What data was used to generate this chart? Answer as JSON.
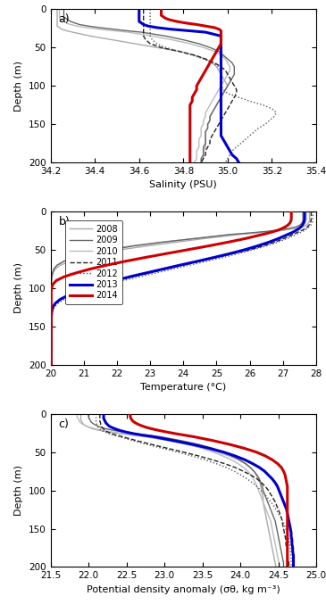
{
  "years": [
    "2008",
    "2009",
    "2010",
    "2011",
    "2012",
    "2013",
    "2014"
  ],
  "styles": {
    "2008": {
      "color": "#aaaaaa",
      "lw": 1.0,
      "ls": "-",
      "zorder": 1
    },
    "2009": {
      "color": "#666666",
      "lw": 1.0,
      "ls": "-",
      "zorder": 2
    },
    "2010": {
      "color": "#bbbbbb",
      "lw": 1.0,
      "ls": "-",
      "zorder": 1
    },
    "2011": {
      "color": "#222222",
      "lw": 1.0,
      "ls": "--",
      "zorder": 2
    },
    "2012": {
      "color": "#555555",
      "lw": 1.0,
      "ls": ":",
      "zorder": 2
    },
    "2013": {
      "color": "#0000cc",
      "lw": 2.2,
      "ls": "-",
      "zorder": 5
    },
    "2014": {
      "color": "#cc0000",
      "lw": 2.2,
      "ls": "-",
      "zorder": 6
    }
  },
  "depth": [
    0,
    2,
    4,
    6,
    8,
    10,
    12,
    14,
    16,
    18,
    20,
    22,
    24,
    26,
    28,
    30,
    35,
    40,
    45,
    50,
    55,
    60,
    65,
    70,
    75,
    80,
    85,
    90,
    95,
    100,
    105,
    110,
    115,
    120,
    125,
    130,
    135,
    140,
    145,
    150,
    155,
    160,
    165,
    170,
    175,
    180,
    185,
    190,
    195,
    200
  ],
  "salinity": {
    "2008": [
      34.23,
      34.23,
      34.23,
      34.23,
      34.23,
      34.23,
      34.23,
      34.23,
      34.23,
      34.23,
      34.23,
      34.23,
      34.24,
      34.25,
      34.27,
      34.3,
      34.38,
      34.48,
      34.58,
      34.68,
      34.78,
      34.85,
      34.9,
      34.93,
      34.95,
      34.96,
      34.97,
      34.98,
      34.99,
      35.0,
      34.99,
      34.98,
      34.97,
      34.96,
      34.95,
      34.94,
      34.93,
      34.92,
      34.92,
      34.91,
      34.91,
      34.9,
      34.9,
      34.9,
      34.9,
      34.9,
      34.89,
      34.89,
      34.89,
      34.88
    ],
    "2009": [
      34.26,
      34.26,
      34.26,
      34.26,
      34.26,
      34.26,
      34.27,
      34.28,
      34.29,
      34.31,
      34.33,
      34.37,
      34.42,
      34.48,
      34.54,
      34.61,
      34.72,
      34.8,
      34.87,
      34.92,
      34.96,
      34.98,
      35.0,
      35.02,
      35.03,
      35.03,
      35.03,
      35.02,
      35.01,
      35.0,
      34.99,
      34.98,
      34.97,
      34.96,
      34.95,
      34.94,
      34.93,
      34.92,
      34.92,
      34.91,
      34.91,
      34.9,
      34.9,
      34.9,
      34.9,
      34.89,
      34.89,
      34.89,
      34.88,
      34.88
    ],
    "2010": [
      34.24,
      34.24,
      34.24,
      34.24,
      34.24,
      34.24,
      34.24,
      34.25,
      34.26,
      34.27,
      34.29,
      34.32,
      34.36,
      34.42,
      34.48,
      34.55,
      34.66,
      34.75,
      34.83,
      34.89,
      34.94,
      34.97,
      34.99,
      35.0,
      35.01,
      35.01,
      35.0,
      34.99,
      34.98,
      34.97,
      34.96,
      34.95,
      34.94,
      34.93,
      34.92,
      34.91,
      34.9,
      34.9,
      34.89,
      34.89,
      34.88,
      34.88,
      34.88,
      34.87,
      34.87,
      34.87,
      34.86,
      34.86,
      34.86,
      34.85
    ],
    "2011": [
      34.62,
      34.62,
      34.62,
      34.62,
      34.62,
      34.62,
      34.62,
      34.62,
      34.62,
      34.62,
      34.62,
      34.62,
      34.62,
      34.62,
      34.62,
      34.62,
      34.62,
      34.63,
      34.65,
      34.7,
      34.78,
      34.85,
      34.9,
      34.94,
      34.97,
      34.99,
      35.0,
      35.01,
      35.02,
      35.03,
      35.04,
      35.04,
      35.03,
      35.02,
      35.01,
      35.0,
      34.99,
      34.98,
      34.97,
      34.96,
      34.95,
      34.94,
      34.93,
      34.92,
      34.92,
      34.91,
      34.9,
      34.9,
      34.89,
      34.88
    ],
    "2012": [
      34.65,
      34.65,
      34.65,
      34.65,
      34.65,
      34.65,
      34.65,
      34.65,
      34.65,
      34.65,
      34.65,
      34.65,
      34.65,
      34.65,
      34.65,
      34.65,
      34.65,
      34.66,
      34.68,
      34.72,
      34.78,
      34.84,
      34.89,
      34.93,
      34.96,
      34.97,
      34.97,
      34.97,
      34.97,
      34.97,
      34.98,
      35.0,
      35.05,
      35.1,
      35.16,
      35.2,
      35.22,
      35.21,
      35.19,
      35.17,
      35.14,
      35.12,
      35.1,
      35.08,
      35.06,
      35.04,
      35.02,
      35.01,
      35.0,
      34.99
    ],
    "2013": [
      34.6,
      34.6,
      34.6,
      34.6,
      34.6,
      34.6,
      34.6,
      34.6,
      34.6,
      34.61,
      34.62,
      34.64,
      34.68,
      34.74,
      34.82,
      34.9,
      34.97,
      34.97,
      34.97,
      34.97,
      34.97,
      34.97,
      34.97,
      34.97,
      34.97,
      34.97,
      34.97,
      34.97,
      34.97,
      34.97,
      34.97,
      34.97,
      34.97,
      34.97,
      34.97,
      34.97,
      34.97,
      34.97,
      34.97,
      34.97,
      34.97,
      34.97,
      34.97,
      34.98,
      34.99,
      35.0,
      35.01,
      35.02,
      35.04,
      35.05
    ],
    "2014": [
      34.7,
      34.7,
      34.7,
      34.7,
      34.7,
      34.71,
      34.72,
      34.74,
      34.77,
      34.81,
      34.86,
      34.9,
      34.94,
      34.96,
      34.97,
      34.97,
      34.97,
      34.97,
      34.97,
      34.96,
      34.95,
      34.94,
      34.93,
      34.92,
      34.91,
      34.9,
      34.89,
      34.88,
      34.87,
      34.86,
      34.86,
      34.85,
      34.84,
      34.84,
      34.83,
      34.83,
      34.83,
      34.83,
      34.83,
      34.83,
      34.83,
      34.83,
      34.83,
      34.83,
      34.83,
      34.83,
      34.83,
      34.83,
      34.83,
      34.83
    ]
  },
  "temperature": {
    "2008": [
      27.8,
      27.8,
      27.8,
      27.8,
      27.8,
      27.8,
      27.8,
      27.78,
      27.75,
      27.7,
      27.6,
      27.4,
      27.1,
      26.7,
      26.2,
      25.7,
      24.7,
      23.8,
      22.9,
      22.1,
      21.5,
      21.0,
      20.6,
      20.3,
      20.15,
      20.08,
      20.05,
      20.03,
      20.02,
      20.02,
      20.02,
      20.02,
      20.02,
      20.02,
      20.02,
      20.02,
      20.02,
      20.02,
      20.02,
      20.02,
      20.02,
      20.02,
      20.02,
      20.02,
      20.02,
      20.02,
      20.02,
      20.02,
      20.02,
      20.02
    ],
    "2009": [
      27.6,
      27.6,
      27.6,
      27.6,
      27.6,
      27.6,
      27.6,
      27.58,
      27.55,
      27.5,
      27.4,
      27.2,
      26.9,
      26.5,
      26.0,
      25.4,
      24.4,
      23.4,
      22.5,
      21.8,
      21.2,
      20.8,
      20.4,
      20.2,
      20.1,
      20.06,
      20.04,
      20.03,
      20.02,
      20.02,
      20.02,
      20.02,
      20.02,
      20.02,
      20.02,
      20.02,
      20.02,
      20.02,
      20.02,
      20.02,
      20.02,
      20.02,
      20.02,
      20.02,
      20.02,
      20.02,
      20.02,
      20.02,
      20.02,
      20.02
    ],
    "2010": [
      27.7,
      27.7,
      27.7,
      27.7,
      27.7,
      27.7,
      27.7,
      27.68,
      27.65,
      27.6,
      27.5,
      27.3,
      27.0,
      26.6,
      26.1,
      25.5,
      24.4,
      23.3,
      22.4,
      21.7,
      21.1,
      20.7,
      20.4,
      20.2,
      20.1,
      20.06,
      20.04,
      20.03,
      20.02,
      20.02,
      20.02,
      20.02,
      20.02,
      20.02,
      20.02,
      20.02,
      20.02,
      20.02,
      20.02,
      20.02,
      20.02,
      20.02,
      20.02,
      20.02,
      20.02,
      20.02,
      20.02,
      20.02,
      20.02,
      20.02
    ],
    "2011": [
      27.85,
      27.85,
      27.85,
      27.85,
      27.85,
      27.85,
      27.84,
      27.83,
      27.81,
      27.78,
      27.74,
      27.68,
      27.6,
      27.5,
      27.4,
      27.3,
      27.05,
      26.75,
      26.4,
      26.0,
      25.5,
      25.0,
      24.5,
      24.0,
      23.5,
      23.0,
      22.5,
      22.0,
      21.5,
      21.1,
      20.8,
      20.5,
      20.3,
      20.15,
      20.08,
      20.05,
      20.03,
      20.02,
      20.02,
      20.02,
      20.02,
      20.02,
      20.02,
      20.02,
      20.02,
      20.02,
      20.02,
      20.02,
      20.02,
      20.02
    ],
    "2012": [
      27.9,
      27.9,
      27.9,
      27.9,
      27.9,
      27.9,
      27.89,
      27.88,
      27.86,
      27.83,
      27.79,
      27.74,
      27.67,
      27.59,
      27.5,
      27.4,
      27.15,
      26.85,
      26.5,
      26.1,
      25.65,
      25.2,
      24.7,
      24.2,
      23.7,
      23.2,
      22.7,
      22.2,
      21.7,
      21.3,
      20.95,
      20.65,
      20.4,
      20.22,
      20.1,
      20.06,
      20.04,
      20.03,
      20.02,
      20.02,
      20.02,
      20.02,
      20.02,
      20.02,
      20.02,
      20.02,
      20.02,
      20.02,
      20.02,
      20.02
    ],
    "2013": [
      27.65,
      27.65,
      27.65,
      27.65,
      27.65,
      27.65,
      27.64,
      27.63,
      27.61,
      27.58,
      27.54,
      27.49,
      27.42,
      27.34,
      27.25,
      27.14,
      26.88,
      26.58,
      26.23,
      25.84,
      25.4,
      24.92,
      24.42,
      23.9,
      23.4,
      22.9,
      22.4,
      21.95,
      21.52,
      21.12,
      20.78,
      20.5,
      20.28,
      20.14,
      20.07,
      20.04,
      20.03,
      20.02,
      20.02,
      20.02,
      20.02,
      20.02,
      20.02,
      20.02,
      20.02,
      20.02,
      20.02,
      20.02,
      20.02,
      20.02
    ],
    "2014": [
      27.25,
      27.25,
      27.25,
      27.25,
      27.25,
      27.25,
      27.24,
      27.22,
      27.19,
      27.14,
      27.07,
      26.98,
      26.87,
      26.73,
      26.57,
      26.38,
      25.9,
      25.35,
      24.75,
      24.12,
      23.48,
      22.85,
      22.25,
      21.7,
      21.2,
      20.78,
      20.42,
      20.18,
      20.07,
      20.03,
      20.02,
      20.02,
      20.02,
      20.02,
      20.02,
      20.02,
      20.02,
      20.02,
      20.02,
      20.02,
      20.02,
      20.02,
      20.02,
      20.02,
      20.02,
      20.02,
      20.02,
      20.02,
      20.02,
      20.02
    ]
  },
  "density": {
    "2008": [
      21.9,
      21.9,
      21.9,
      21.9,
      21.9,
      21.91,
      21.92,
      21.94,
      21.97,
      22.01,
      22.07,
      22.16,
      22.28,
      22.42,
      22.58,
      22.75,
      23.05,
      23.3,
      23.52,
      23.7,
      23.85,
      23.97,
      24.06,
      24.13,
      24.18,
      24.21,
      24.24,
      24.26,
      24.27,
      24.28,
      24.29,
      24.3,
      24.3,
      24.31,
      24.32,
      24.33,
      24.34,
      24.35,
      24.36,
      24.37,
      24.38,
      24.39,
      24.4,
      24.41,
      24.42,
      24.43,
      24.44,
      24.45,
      24.46,
      24.47
    ],
    "2009": [
      22.0,
      22.0,
      22.0,
      22.01,
      22.02,
      22.03,
      22.05,
      22.08,
      22.12,
      22.17,
      22.25,
      22.35,
      22.48,
      22.63,
      22.79,
      22.95,
      23.22,
      23.45,
      23.63,
      23.77,
      23.89,
      23.99,
      24.07,
      24.13,
      24.18,
      24.22,
      24.25,
      24.27,
      24.29,
      24.3,
      24.32,
      24.34,
      24.36,
      24.38,
      24.4,
      24.42,
      24.44,
      24.46,
      24.47,
      24.48,
      24.49,
      24.5,
      24.51,
      24.52,
      24.53,
      24.54,
      24.55,
      24.56,
      24.57,
      24.57
    ],
    "2010": [
      21.85,
      21.85,
      21.85,
      21.86,
      21.87,
      21.88,
      21.9,
      21.93,
      21.97,
      22.03,
      22.1,
      22.2,
      22.33,
      22.48,
      22.64,
      22.8,
      23.07,
      23.3,
      23.49,
      23.64,
      23.77,
      23.88,
      23.97,
      24.04,
      24.1,
      24.14,
      24.17,
      24.2,
      24.22,
      24.24,
      24.26,
      24.28,
      24.3,
      24.32,
      24.34,
      24.36,
      24.38,
      24.4,
      24.41,
      24.42,
      24.43,
      24.44,
      24.45,
      24.46,
      24.47,
      24.48,
      24.49,
      24.5,
      24.51,
      24.52
    ],
    "2011": [
      22.15,
      22.15,
      22.15,
      22.15,
      22.15,
      22.15,
      22.16,
      22.16,
      22.17,
      22.18,
      22.2,
      22.22,
      22.26,
      22.31,
      22.37,
      22.45,
      22.63,
      22.83,
      23.04,
      23.25,
      23.45,
      23.63,
      23.79,
      23.93,
      24.04,
      24.14,
      24.22,
      24.28,
      24.33,
      24.37,
      24.4,
      24.43,
      24.46,
      24.48,
      24.5,
      24.52,
      24.54,
      24.55,
      24.56,
      24.57,
      24.58,
      24.59,
      24.6,
      24.6,
      24.61,
      24.62,
      24.62,
      24.63,
      24.64,
      24.64
    ],
    "2012": [
      22.1,
      22.1,
      22.1,
      22.1,
      22.1,
      22.1,
      22.11,
      22.11,
      22.12,
      22.13,
      22.15,
      22.18,
      22.22,
      22.27,
      22.33,
      22.41,
      22.58,
      22.77,
      22.97,
      23.17,
      23.36,
      23.53,
      23.68,
      23.81,
      23.92,
      24.01,
      24.09,
      24.16,
      24.22,
      24.27,
      24.32,
      24.36,
      24.4,
      24.44,
      24.47,
      24.5,
      24.53,
      24.56,
      24.58,
      24.6,
      24.62,
      24.63,
      24.64,
      24.65,
      24.66,
      24.66,
      24.67,
      24.67,
      24.67,
      24.67
    ],
    "2013": [
      22.2,
      22.2,
      22.2,
      22.2,
      22.21,
      22.22,
      22.23,
      22.25,
      22.27,
      22.31,
      22.36,
      22.42,
      22.5,
      22.6,
      22.72,
      22.86,
      23.12,
      23.37,
      23.59,
      23.78,
      23.93,
      24.06,
      24.16,
      24.25,
      24.32,
      24.37,
      24.42,
      24.46,
      24.49,
      24.51,
      24.53,
      24.55,
      24.57,
      24.59,
      24.61,
      24.62,
      24.63,
      24.64,
      24.65,
      24.66,
      24.67,
      24.67,
      24.68,
      24.68,
      24.69,
      24.69,
      24.7,
      24.7,
      24.7,
      24.7
    ],
    "2014": [
      22.55,
      22.55,
      22.55,
      22.56,
      22.57,
      22.59,
      22.62,
      22.66,
      22.71,
      22.77,
      22.85,
      22.94,
      23.04,
      23.15,
      23.27,
      23.39,
      23.64,
      23.86,
      24.05,
      24.21,
      24.33,
      24.42,
      24.49,
      24.54,
      24.57,
      24.59,
      24.6,
      24.61,
      24.62,
      24.62,
      24.62,
      24.62,
      24.62,
      24.62,
      24.62,
      24.62,
      24.62,
      24.62,
      24.62,
      24.62,
      24.62,
      24.62,
      24.62,
      24.62,
      24.62,
      24.62,
      24.62,
      24.62,
      24.62,
      24.62
    ]
  },
  "xlim_sal": [
    34.2,
    35.4
  ],
  "xlim_temp": [
    20,
    28
  ],
  "xlim_dens": [
    21.5,
    25
  ],
  "ylim": [
    200,
    0
  ],
  "yticks": [
    0,
    50,
    100,
    150,
    200
  ],
  "xticks_sal": [
    34.2,
    34.4,
    34.6,
    34.8,
    35.0,
    35.2,
    35.4
  ],
  "xticks_temp": [
    20,
    21,
    22,
    23,
    24,
    25,
    26,
    27,
    28
  ],
  "xticks_dens": [
    21.5,
    22.0,
    22.5,
    23.0,
    23.5,
    24.0,
    24.5,
    25.0
  ],
  "xlabel_sal": "Salinity (PSU)",
  "xlabel_temp": "Temperature (°C)",
  "xlabel_dens": "Potential density anomaly (σθ, kg m⁻³)",
  "ylabel": "Depth (m)",
  "label_a": "a)",
  "label_b": "b)",
  "label_c": "c)"
}
